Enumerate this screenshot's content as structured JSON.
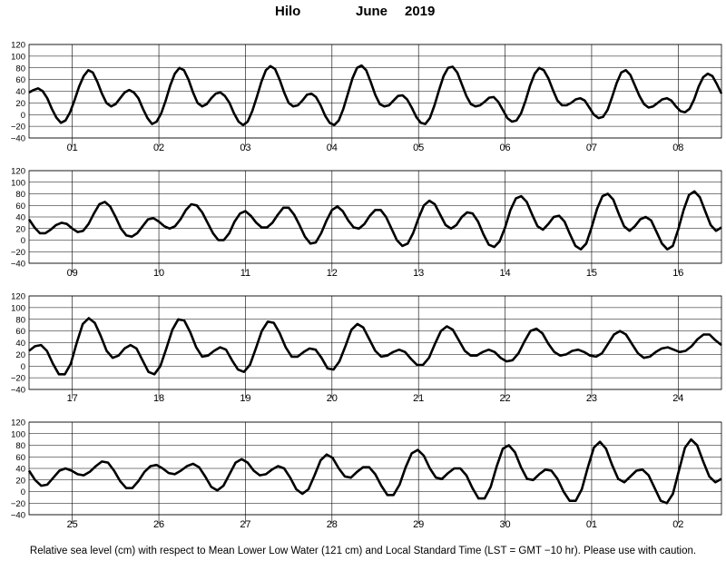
{
  "header": {
    "place": "Hilo",
    "month": "June",
    "year": "2019"
  },
  "footer": "Relative sea level (cm) with respect to Mean Lower Low Water (121 cm) and Local Standard Time (LST = GMT −10 hr). Please use with caution.",
  "colors": {
    "curve": "#000000",
    "grid": "#000000",
    "background": "#ffffff"
  },
  "chart_data": [
    {
      "type": "line",
      "ylim": [
        -40,
        120
      ],
      "yticks": [
        "120",
        "100",
        "80",
        "60",
        "40",
        "20",
        "0",
        "−20",
        "−40"
      ],
      "days": [
        "01",
        "02",
        "03",
        "04",
        "05",
        "06",
        "07",
        "08"
      ],
      "series": [
        {
          "values": [
            38,
            42,
            45,
            40,
            28,
            10,
            -5,
            -14,
            -10,
            4,
            25,
            48,
            66,
            76,
            72,
            56,
            36,
            20,
            14,
            18,
            28,
            38,
            42,
            38,
            28,
            10,
            -6,
            -16,
            -12,
            2,
            24,
            50,
            70,
            80,
            76,
            60,
            38,
            20,
            14,
            18,
            28,
            36,
            38,
            32,
            20,
            2,
            -12,
            -18,
            -12,
            6,
            30,
            56,
            76,
            83,
            78,
            60,
            38,
            20,
            14,
            16,
            24,
            34,
            36,
            30,
            16,
            -2,
            -14,
            -18,
            -10,
            10,
            36,
            62,
            80,
            84,
            76,
            56,
            34,
            18,
            14,
            16,
            24,
            32,
            33,
            26,
            12,
            -4,
            -14,
            -16,
            -6,
            16,
            42,
            66,
            80,
            82,
            72,
            52,
            32,
            18,
            14,
            16,
            22,
            29,
            30,
            22,
            8,
            -6,
            -12,
            -10,
            2,
            24,
            50,
            70,
            80,
            76,
            62,
            42,
            24,
            16,
            16,
            20,
            26,
            28,
            24,
            12,
            0,
            -6,
            -4,
            8,
            30,
            54,
            72,
            76,
            68,
            50,
            32,
            18,
            12,
            14,
            20,
            26,
            28,
            24,
            14,
            6,
            4,
            10,
            26,
            48,
            64,
            70,
            66,
            52,
            36
          ]
        }
      ]
    },
    {
      "type": "line",
      "ylim": [
        -40,
        120
      ],
      "yticks": [
        "120",
        "100",
        "80",
        "60",
        "40",
        "20",
        "0",
        "−20",
        "−40"
      ],
      "days": [
        "09",
        "10",
        "11",
        "12",
        "13",
        "14",
        "15",
        "16"
      ],
      "series": [
        {
          "values": [
            36,
            22,
            12,
            12,
            18,
            26,
            30,
            28,
            20,
            14,
            16,
            28,
            46,
            62,
            66,
            58,
            40,
            20,
            8,
            6,
            12,
            24,
            36,
            38,
            32,
            24,
            20,
            24,
            36,
            52,
            62,
            60,
            48,
            30,
            12,
            0,
            0,
            12,
            32,
            46,
            50,
            42,
            30,
            22,
            22,
            30,
            44,
            56,
            56,
            44,
            26,
            6,
            -6,
            -4,
            12,
            34,
            52,
            58,
            50,
            34,
            22,
            20,
            28,
            42,
            52,
            52,
            40,
            20,
            0,
            -10,
            -6,
            12,
            38,
            60,
            68,
            62,
            44,
            26,
            20,
            26,
            40,
            48,
            46,
            32,
            10,
            -8,
            -12,
            -2,
            22,
            52,
            72,
            76,
            66,
            44,
            24,
            18,
            28,
            40,
            42,
            32,
            10,
            -10,
            -16,
            -6,
            22,
            54,
            76,
            80,
            70,
            46,
            24,
            16,
            24,
            36,
            40,
            34,
            14,
            -6,
            -16,
            -10,
            18,
            52,
            78,
            84,
            74,
            50,
            26,
            16,
            22
          ]
        }
      ]
    },
    {
      "type": "line",
      "ylim": [
        -40,
        120
      ],
      "yticks": [
        "120",
        "100",
        "80",
        "60",
        "40",
        "20",
        "0",
        "−20",
        "−40"
      ],
      "days": [
        "17",
        "18",
        "19",
        "20",
        "21",
        "22",
        "23",
        "24"
      ],
      "series": [
        {
          "values": [
            26,
            34,
            36,
            26,
            4,
            -14,
            -14,
            4,
            40,
            72,
            82,
            74,
            52,
            26,
            14,
            18,
            30,
            36,
            30,
            10,
            -10,
            -14,
            0,
            30,
            62,
            80,
            78,
            58,
            32,
            16,
            18,
            26,
            32,
            28,
            10,
            -6,
            -10,
            2,
            30,
            60,
            76,
            74,
            56,
            32,
            16,
            16,
            24,
            30,
            28,
            14,
            -4,
            -6,
            8,
            34,
            62,
            72,
            66,
            46,
            26,
            16,
            18,
            24,
            28,
            24,
            12,
            2,
            2,
            14,
            38,
            60,
            68,
            62,
            44,
            26,
            18,
            18,
            24,
            28,
            24,
            14,
            8,
            10,
            22,
            42,
            60,
            64,
            56,
            38,
            24,
            18,
            20,
            26,
            28,
            24,
            18,
            16,
            22,
            38,
            54,
            60,
            54,
            38,
            22,
            14,
            16,
            24,
            30,
            32,
            28,
            24,
            26,
            34,
            46,
            54,
            54,
            44,
            36
          ]
        }
      ]
    },
    {
      "type": "line",
      "ylim": [
        -40,
        120
      ],
      "yticks": [
        "120",
        "100",
        "80",
        "60",
        "40",
        "20",
        "0",
        "−20",
        "−40"
      ],
      "days": [
        "25",
        "26",
        "27",
        "28",
        "29",
        "30",
        "01",
        "02"
      ],
      "series": [
        {
          "values": [
            36,
            20,
            10,
            12,
            24,
            36,
            40,
            36,
            30,
            28,
            34,
            44,
            52,
            50,
            36,
            18,
            6,
            6,
            18,
            34,
            44,
            46,
            40,
            32,
            30,
            36,
            44,
            48,
            42,
            26,
            8,
            2,
            10,
            30,
            50,
            56,
            50,
            36,
            28,
            30,
            38,
            44,
            40,
            24,
            4,
            -4,
            4,
            28,
            54,
            64,
            58,
            40,
            26,
            24,
            34,
            42,
            42,
            30,
            10,
            -6,
            -6,
            12,
            42,
            66,
            72,
            62,
            40,
            24,
            22,
            32,
            40,
            40,
            28,
            6,
            -12,
            -12,
            8,
            44,
            74,
            80,
            68,
            42,
            22,
            20,
            30,
            38,
            36,
            22,
            0,
            -16,
            -16,
            4,
            42,
            76,
            86,
            74,
            46,
            22,
            16,
            26,
            36,
            38,
            28,
            6,
            -16,
            -20,
            -4,
            36,
            76,
            90,
            80,
            52,
            26,
            16,
            22
          ]
        }
      ]
    }
  ]
}
